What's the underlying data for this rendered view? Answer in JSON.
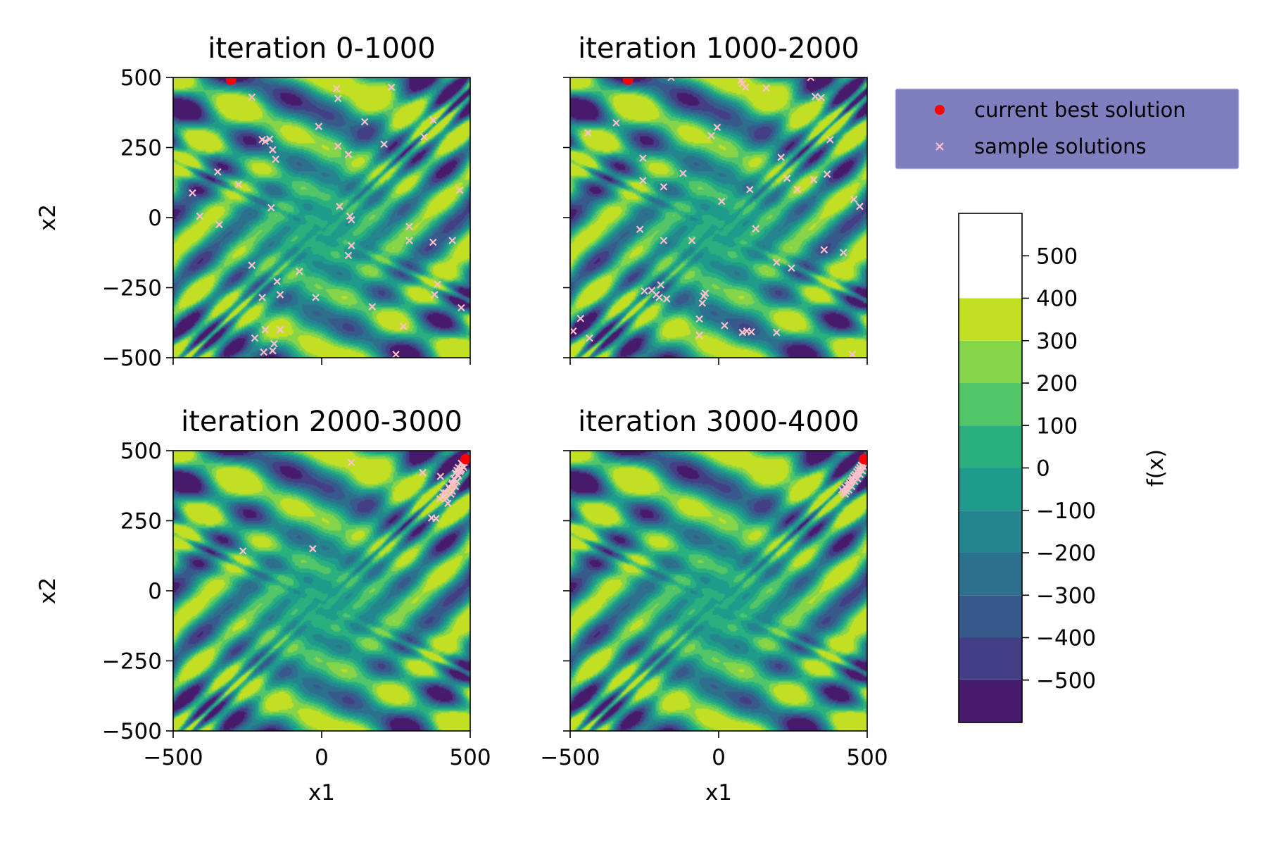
{
  "chart_data": {
    "type": "contour-scatter",
    "x_axis": {
      "label": "x1",
      "lim": [
        -500,
        500
      ],
      "ticks": [
        -500,
        0,
        500
      ],
      "tick_labels": [
        "−500",
        "0",
        "500"
      ]
    },
    "y_axis": {
      "label": "x2",
      "lim": [
        -500,
        500
      ],
      "ticks": [
        -500,
        -250,
        0,
        250,
        500
      ],
      "tick_labels": [
        "−500",
        "−250",
        "0",
        "250",
        "500"
      ]
    },
    "legend": {
      "location": "upper right",
      "entries": [
        {
          "label": "current best solution",
          "marker": "dot",
          "color": "#ff0000"
        },
        {
          "label": "sample solutions",
          "marker": "x",
          "color": "#ffc0cb"
        }
      ]
    },
    "colorbar": {
      "label": "f(x)",
      "levels": [
        -600,
        -500,
        -400,
        -300,
        -200,
        -100,
        0,
        100,
        200,
        300,
        400,
        500,
        600
      ],
      "ticks": [
        500,
        400,
        300,
        200,
        100,
        0,
        -100,
        -200,
        -300,
        -400,
        -500
      ],
      "tick_labels": [
        "500",
        "400",
        "300",
        "200",
        "100",
        "0",
        "−100",
        "−200",
        "−300",
        "−400",
        "−500"
      ],
      "colors": [
        "#481a6c",
        "#433e85",
        "#38598c",
        "#2d708e",
        "#25858e",
        "#1e9b8a",
        "#2ab07f",
        "#52c569",
        "#86d549",
        "#c2df23"
      ]
    },
    "panels": [
      {
        "title": "iteration 0-1000",
        "best": [
          [
            -305,
            492
          ]
        ],
        "samples": [
          [
            -435,
            88
          ],
          [
            -410,
            5
          ],
          [
            -350,
            163
          ],
          [
            -345,
            -25
          ],
          [
            -280,
            118
          ],
          [
            -235,
            430
          ],
          [
            -235,
            -170
          ],
          [
            -200,
            278
          ],
          [
            -190,
            272
          ],
          [
            -175,
            280
          ],
          [
            -165,
            242
          ],
          [
            -155,
            208
          ],
          [
            -170,
            35
          ],
          [
            -150,
            -228
          ],
          [
            -140,
            -275
          ],
          [
            -140,
            -400
          ],
          [
            -160,
            -450
          ],
          [
            -165,
            -475
          ],
          [
            -190,
            -400
          ],
          [
            -200,
            -285
          ],
          [
            -225,
            -430
          ],
          [
            -195,
            -480
          ],
          [
            -75,
            -192
          ],
          [
            -20,
            -285
          ],
          [
            -10,
            325
          ],
          [
            55,
            255
          ],
          [
            60,
            40
          ],
          [
            50,
            460
          ],
          [
            55,
            425
          ],
          [
            90,
            225
          ],
          [
            95,
            5
          ],
          [
            100,
            -8
          ],
          [
            100,
            -100
          ],
          [
            90,
            -135
          ],
          [
            145,
            342
          ],
          [
            170,
            -318
          ],
          [
            210,
            262
          ],
          [
            235,
            465
          ],
          [
            250,
            -488
          ],
          [
            275,
            -388
          ],
          [
            295,
            -32
          ],
          [
            295,
            -82
          ],
          [
            345,
            288
          ],
          [
            375,
            348
          ],
          [
            375,
            -88
          ],
          [
            390,
            -238
          ],
          [
            380,
            -275
          ],
          [
            440,
            -82
          ],
          [
            465,
            98
          ],
          [
            470,
            -322
          ]
        ]
      },
      {
        "title": "iteration 1000-2000",
        "best": [
          [
            -305,
            492
          ]
        ],
        "samples": [
          [
            -490,
            -405
          ],
          [
            -465,
            -360
          ],
          [
            -440,
            302
          ],
          [
            -435,
            -430
          ],
          [
            -345,
            338
          ],
          [
            -265,
            -42
          ],
          [
            -255,
            212
          ],
          [
            -255,
            132
          ],
          [
            -250,
            -262
          ],
          [
            -185,
            -82
          ],
          [
            -225,
            -260
          ],
          [
            -210,
            -275
          ],
          [
            -195,
            -240
          ],
          [
            -200,
            -285
          ],
          [
            -175,
            -290
          ],
          [
            -185,
            110
          ],
          [
            -160,
            500
          ],
          [
            -120,
            158
          ],
          [
            -90,
            -82
          ],
          [
            -65,
            -362
          ],
          [
            -55,
            -305
          ],
          [
            -50,
            -280
          ],
          [
            -45,
            -270
          ],
          [
            -65,
            -420
          ],
          [
            -25,
            292
          ],
          [
            -5,
            322
          ],
          [
            10,
            58
          ],
          [
            20,
            -385
          ],
          [
            75,
            490
          ],
          [
            80,
            478
          ],
          [
            90,
            465
          ],
          [
            95,
            -405
          ],
          [
            80,
            -410
          ],
          [
            110,
            -408
          ],
          [
            105,
            100
          ],
          [
            125,
            -40
          ],
          [
            160,
            462
          ],
          [
            195,
            -410
          ],
          [
            195,
            -160
          ],
          [
            210,
            215
          ],
          [
            230,
            140
          ],
          [
            245,
            -180
          ],
          [
            265,
            100
          ],
          [
            310,
            500
          ],
          [
            320,
            135
          ],
          [
            325,
            432
          ],
          [
            345,
            428
          ],
          [
            355,
            -115
          ],
          [
            365,
            155
          ],
          [
            375,
            278
          ],
          [
            420,
            -125
          ],
          [
            455,
            65
          ],
          [
            475,
            40
          ],
          [
            450,
            -488
          ]
        ]
      },
      {
        "title": "iteration 2000-3000",
        "best": [
          [
            485,
            470
          ]
        ],
        "samples": [
          [
            -265,
            142
          ],
          [
            -30,
            150
          ],
          [
            100,
            458
          ],
          [
            340,
            422
          ],
          [
            370,
            260
          ],
          [
            385,
            258
          ],
          [
            400,
            408
          ],
          [
            410,
            350
          ],
          [
            420,
            330
          ],
          [
            430,
            365
          ],
          [
            440,
            385
          ],
          [
            445,
            400
          ],
          [
            450,
            420
          ],
          [
            455,
            430
          ],
          [
            460,
            440
          ],
          [
            470,
            455
          ],
          [
            425,
            312
          ],
          [
            435,
            345
          ],
          [
            440,
            355
          ],
          [
            450,
            372
          ],
          [
            455,
            390
          ],
          [
            460,
            410
          ],
          [
            465,
            425
          ],
          [
            470,
            435
          ],
          [
            475,
            445
          ],
          [
            480,
            458
          ],
          [
            408,
            335
          ],
          [
            418,
            350
          ],
          [
            428,
            370
          ],
          [
            438,
            380
          ],
          [
            448,
            398
          ],
          [
            458,
            415
          ],
          [
            468,
            430
          ],
          [
            478,
            440
          ],
          [
            398,
            328
          ]
        ]
      },
      {
        "title": "iteration 3000-4000",
        "best": [
          [
            490,
            470
          ]
        ],
        "samples": [
          [
            415,
            360
          ],
          [
            425,
            370
          ],
          [
            430,
            355
          ],
          [
            435,
            375
          ],
          [
            440,
            385
          ],
          [
            445,
            392
          ],
          [
            450,
            402
          ],
          [
            455,
            410
          ],
          [
            460,
            415
          ],
          [
            465,
            425
          ],
          [
            470,
            432
          ],
          [
            475,
            440
          ],
          [
            480,
            448
          ],
          [
            485,
            455
          ],
          [
            420,
            350
          ],
          [
            430,
            365
          ],
          [
            440,
            378
          ],
          [
            450,
            395
          ],
          [
            460,
            405
          ],
          [
            470,
            420
          ],
          [
            478,
            432
          ],
          [
            485,
            445
          ],
          [
            438,
            360
          ],
          [
            448,
            372
          ],
          [
            458,
            390
          ],
          [
            468,
            400
          ],
          [
            476,
            415
          ],
          [
            484,
            428
          ],
          [
            490,
            440
          ],
          [
            426,
            345
          ]
        ]
      }
    ]
  }
}
